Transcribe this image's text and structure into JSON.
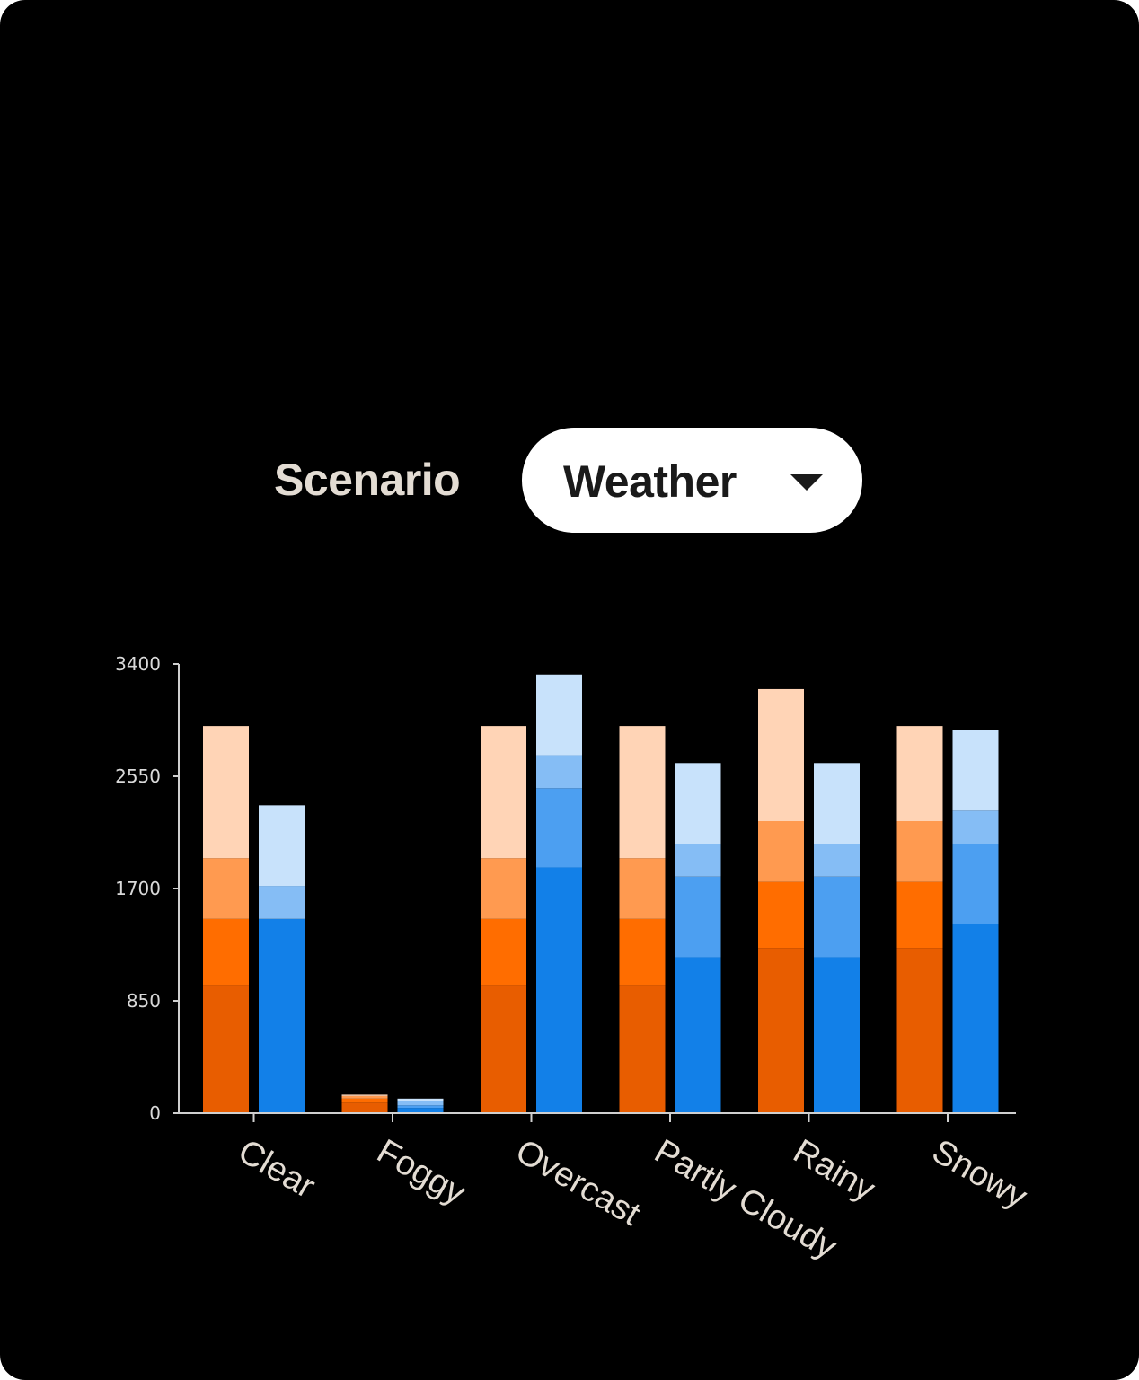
{
  "controls": {
    "scenario_label": "Scenario",
    "scenario_value": "Weather"
  },
  "chart_data": {
    "type": "bar",
    "stacked": true,
    "grouped": true,
    "categories": [
      "Clear",
      "Foggy",
      "Overcast",
      "Partly Cloudy",
      "Rainy",
      "Snowy"
    ],
    "y_ticks": [
      0,
      850,
      1700,
      2550,
      3400
    ],
    "ylim": [
      0,
      3400
    ],
    "grid": false,
    "groups": [
      {
        "color_family": "orange",
        "segments": [
          {
            "color": "#e85d00",
            "values": [
              970,
              80,
              970,
              970,
              1250,
              1250
            ]
          },
          {
            "color": "#ff6d00",
            "values": [
              500,
              30,
              500,
              500,
              500,
              500
            ]
          },
          {
            "color": "#ff9a50",
            "values": [
              460,
              20,
              460,
              460,
              460,
              460
            ]
          },
          {
            "color": "#ffd4b6",
            "values": [
              1000,
              10,
              1000,
              1000,
              1000,
              720
            ]
          }
        ]
      },
      {
        "color_family": "blue",
        "segments": [
          {
            "color": "#1280e8",
            "values": [
              1470,
              40,
              1860,
              1180,
              1180,
              1430
            ]
          },
          {
            "color": "#4c9ff1",
            "values": [
              0,
              20,
              600,
              610,
              610,
              610
            ]
          },
          {
            "color": "#85bdf5",
            "values": [
              250,
              30,
              250,
              250,
              250,
              250
            ]
          },
          {
            "color": "#c8e2fb",
            "values": [
              610,
              20,
              610,
              610,
              610,
              610
            ]
          }
        ]
      }
    ]
  }
}
